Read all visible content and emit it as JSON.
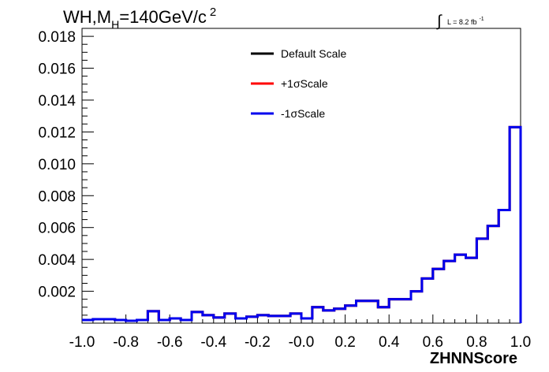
{
  "chart_data": {
    "type": "line",
    "title_main": "WH,M",
    "title_sub": "H",
    "title_rest": "=140GeV/c",
    "title_sup": "2",
    "lumi_symbol": "∫",
    "lumi_text": "L = 8.2 fb",
    "lumi_sup": "-1",
    "xlabel": "ZHNNScore",
    "ylabel": "",
    "xlim": [
      -1.0,
      1.0
    ],
    "ylim": [
      0,
      0.0185
    ],
    "x_ticks": [
      "-1.0",
      "-0.8",
      "-0.6",
      "-0.4",
      "-0.2",
      "-0.0",
      "0.2",
      "0.4",
      "0.6",
      "0.8",
      "1.0"
    ],
    "y_ticks": [
      "0.002",
      "0.004",
      "0.006",
      "0.008",
      "0.010",
      "0.012",
      "0.014",
      "0.016",
      "0.018"
    ],
    "bin_edges": [
      -1.0,
      1.0
    ],
    "n_bins": 40,
    "legend_position": "top-center",
    "series": [
      {
        "name": "Default Scale",
        "color": "#000000",
        "values": [
          0.0002,
          0.00025,
          0.00025,
          0.0002,
          0.00015,
          0.0002,
          0.00075,
          0.0002,
          0.0003,
          0.0002,
          0.0007,
          0.0005,
          0.00035,
          0.0006,
          0.0003,
          0.0004,
          0.0005,
          0.00045,
          0.00045,
          0.0006,
          0.0003,
          0.001,
          0.0008,
          0.0009,
          0.0011,
          0.0014,
          0.0014,
          0.001,
          0.0015,
          0.0015,
          0.002,
          0.0028,
          0.0034,
          0.0039,
          0.0043,
          0.0041,
          0.0053,
          0.0061,
          0.0071,
          0.0123
        ]
      },
      {
        "name": "+1σScale",
        "color": "#ff0000",
        "values": [
          0.0002,
          0.00025,
          0.00025,
          0.0002,
          0.00015,
          0.0002,
          0.00075,
          0.0002,
          0.0003,
          0.0002,
          0.0007,
          0.0005,
          0.00035,
          0.0006,
          0.0003,
          0.0004,
          0.0005,
          0.00045,
          0.00045,
          0.0006,
          0.0003,
          0.001,
          0.0008,
          0.0009,
          0.0011,
          0.0014,
          0.0014,
          0.001,
          0.0015,
          0.0015,
          0.002,
          0.0028,
          0.0034,
          0.0039,
          0.0043,
          0.0041,
          0.0053,
          0.0061,
          0.0071,
          0.0123
        ]
      },
      {
        "name": "-1σScale",
        "color": "#0000ee",
        "values": [
          0.0002,
          0.00025,
          0.00025,
          0.0002,
          0.00015,
          0.0002,
          0.00075,
          0.0002,
          0.0003,
          0.0002,
          0.0007,
          0.0005,
          0.00035,
          0.0006,
          0.0003,
          0.0004,
          0.0005,
          0.00045,
          0.00045,
          0.0006,
          0.0003,
          0.001,
          0.0008,
          0.0009,
          0.0011,
          0.0014,
          0.0014,
          0.001,
          0.0015,
          0.0015,
          0.002,
          0.0028,
          0.0034,
          0.0039,
          0.0043,
          0.0041,
          0.0053,
          0.0061,
          0.0071,
          0.0123
        ]
      }
    ]
  }
}
